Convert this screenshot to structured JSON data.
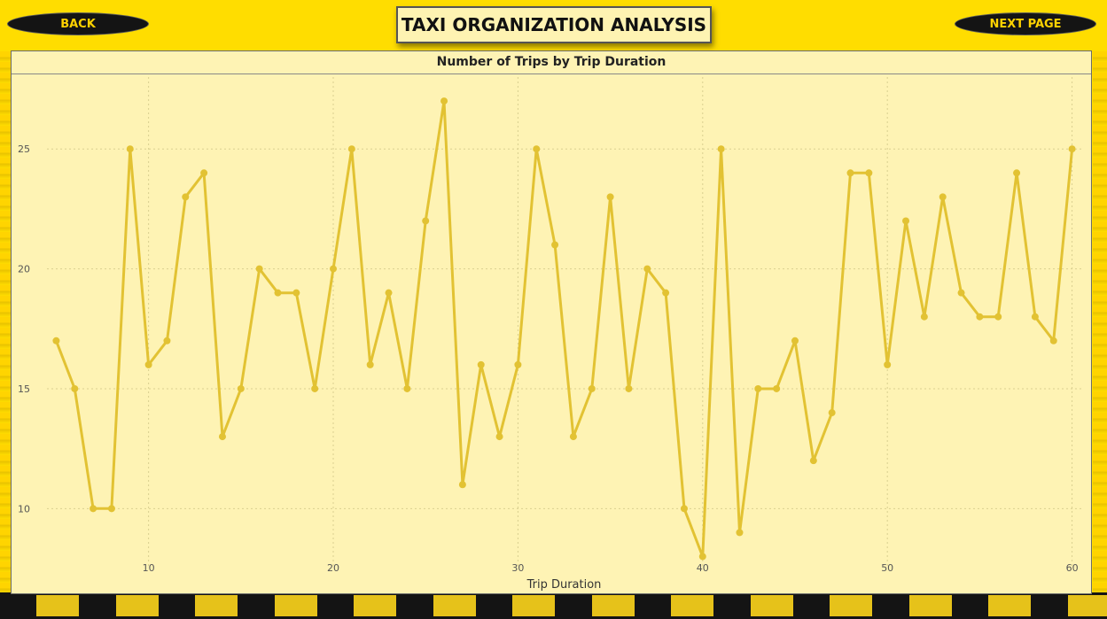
{
  "header": {
    "title": "TAXI ORGANIZATION ANALYSIS",
    "back_label": "BACK",
    "next_label": "NEXT PAGE"
  },
  "colors": {
    "background": "#FFDD00",
    "panel": "#FEF3B4",
    "line": "#E2C233",
    "button": "#141414",
    "button_text": "#FFD200"
  },
  "chart_data": {
    "type": "line",
    "title": "Number of Trips by Trip Duration",
    "xlabel": "Trip Duration",
    "ylabel": "",
    "xlim": [
      4.5,
      60.5
    ],
    "ylim": [
      7.5,
      28
    ],
    "x_ticks": [
      10,
      20,
      30,
      40,
      50,
      60
    ],
    "y_ticks": [
      10,
      15,
      20,
      25
    ],
    "grid": true,
    "x": [
      5,
      6,
      7,
      8,
      9,
      10,
      11,
      12,
      13,
      14,
      15,
      16,
      17,
      18,
      19,
      20,
      21,
      22,
      23,
      24,
      25,
      26,
      27,
      28,
      29,
      30,
      31,
      32,
      33,
      34,
      35,
      36,
      37,
      38,
      39,
      40,
      41,
      42,
      43,
      44,
      45,
      46,
      47,
      48,
      49,
      50,
      51,
      52,
      53,
      54,
      55,
      56,
      57,
      58,
      59,
      60
    ],
    "series": [
      {
        "values": [
          17,
          15,
          10,
          10,
          25,
          16,
          17,
          23,
          24,
          13,
          15,
          20,
          19,
          19,
          15,
          20,
          25,
          16,
          19,
          15,
          22,
          27,
          11,
          16,
          13,
          16,
          25,
          21,
          13,
          15,
          23,
          15,
          20,
          19,
          10,
          8,
          25,
          9,
          15,
          15,
          17,
          12,
          14,
          24,
          24,
          16,
          22,
          18,
          23,
          19,
          18,
          18,
          24,
          18,
          17,
          25
        ]
      }
    ]
  }
}
